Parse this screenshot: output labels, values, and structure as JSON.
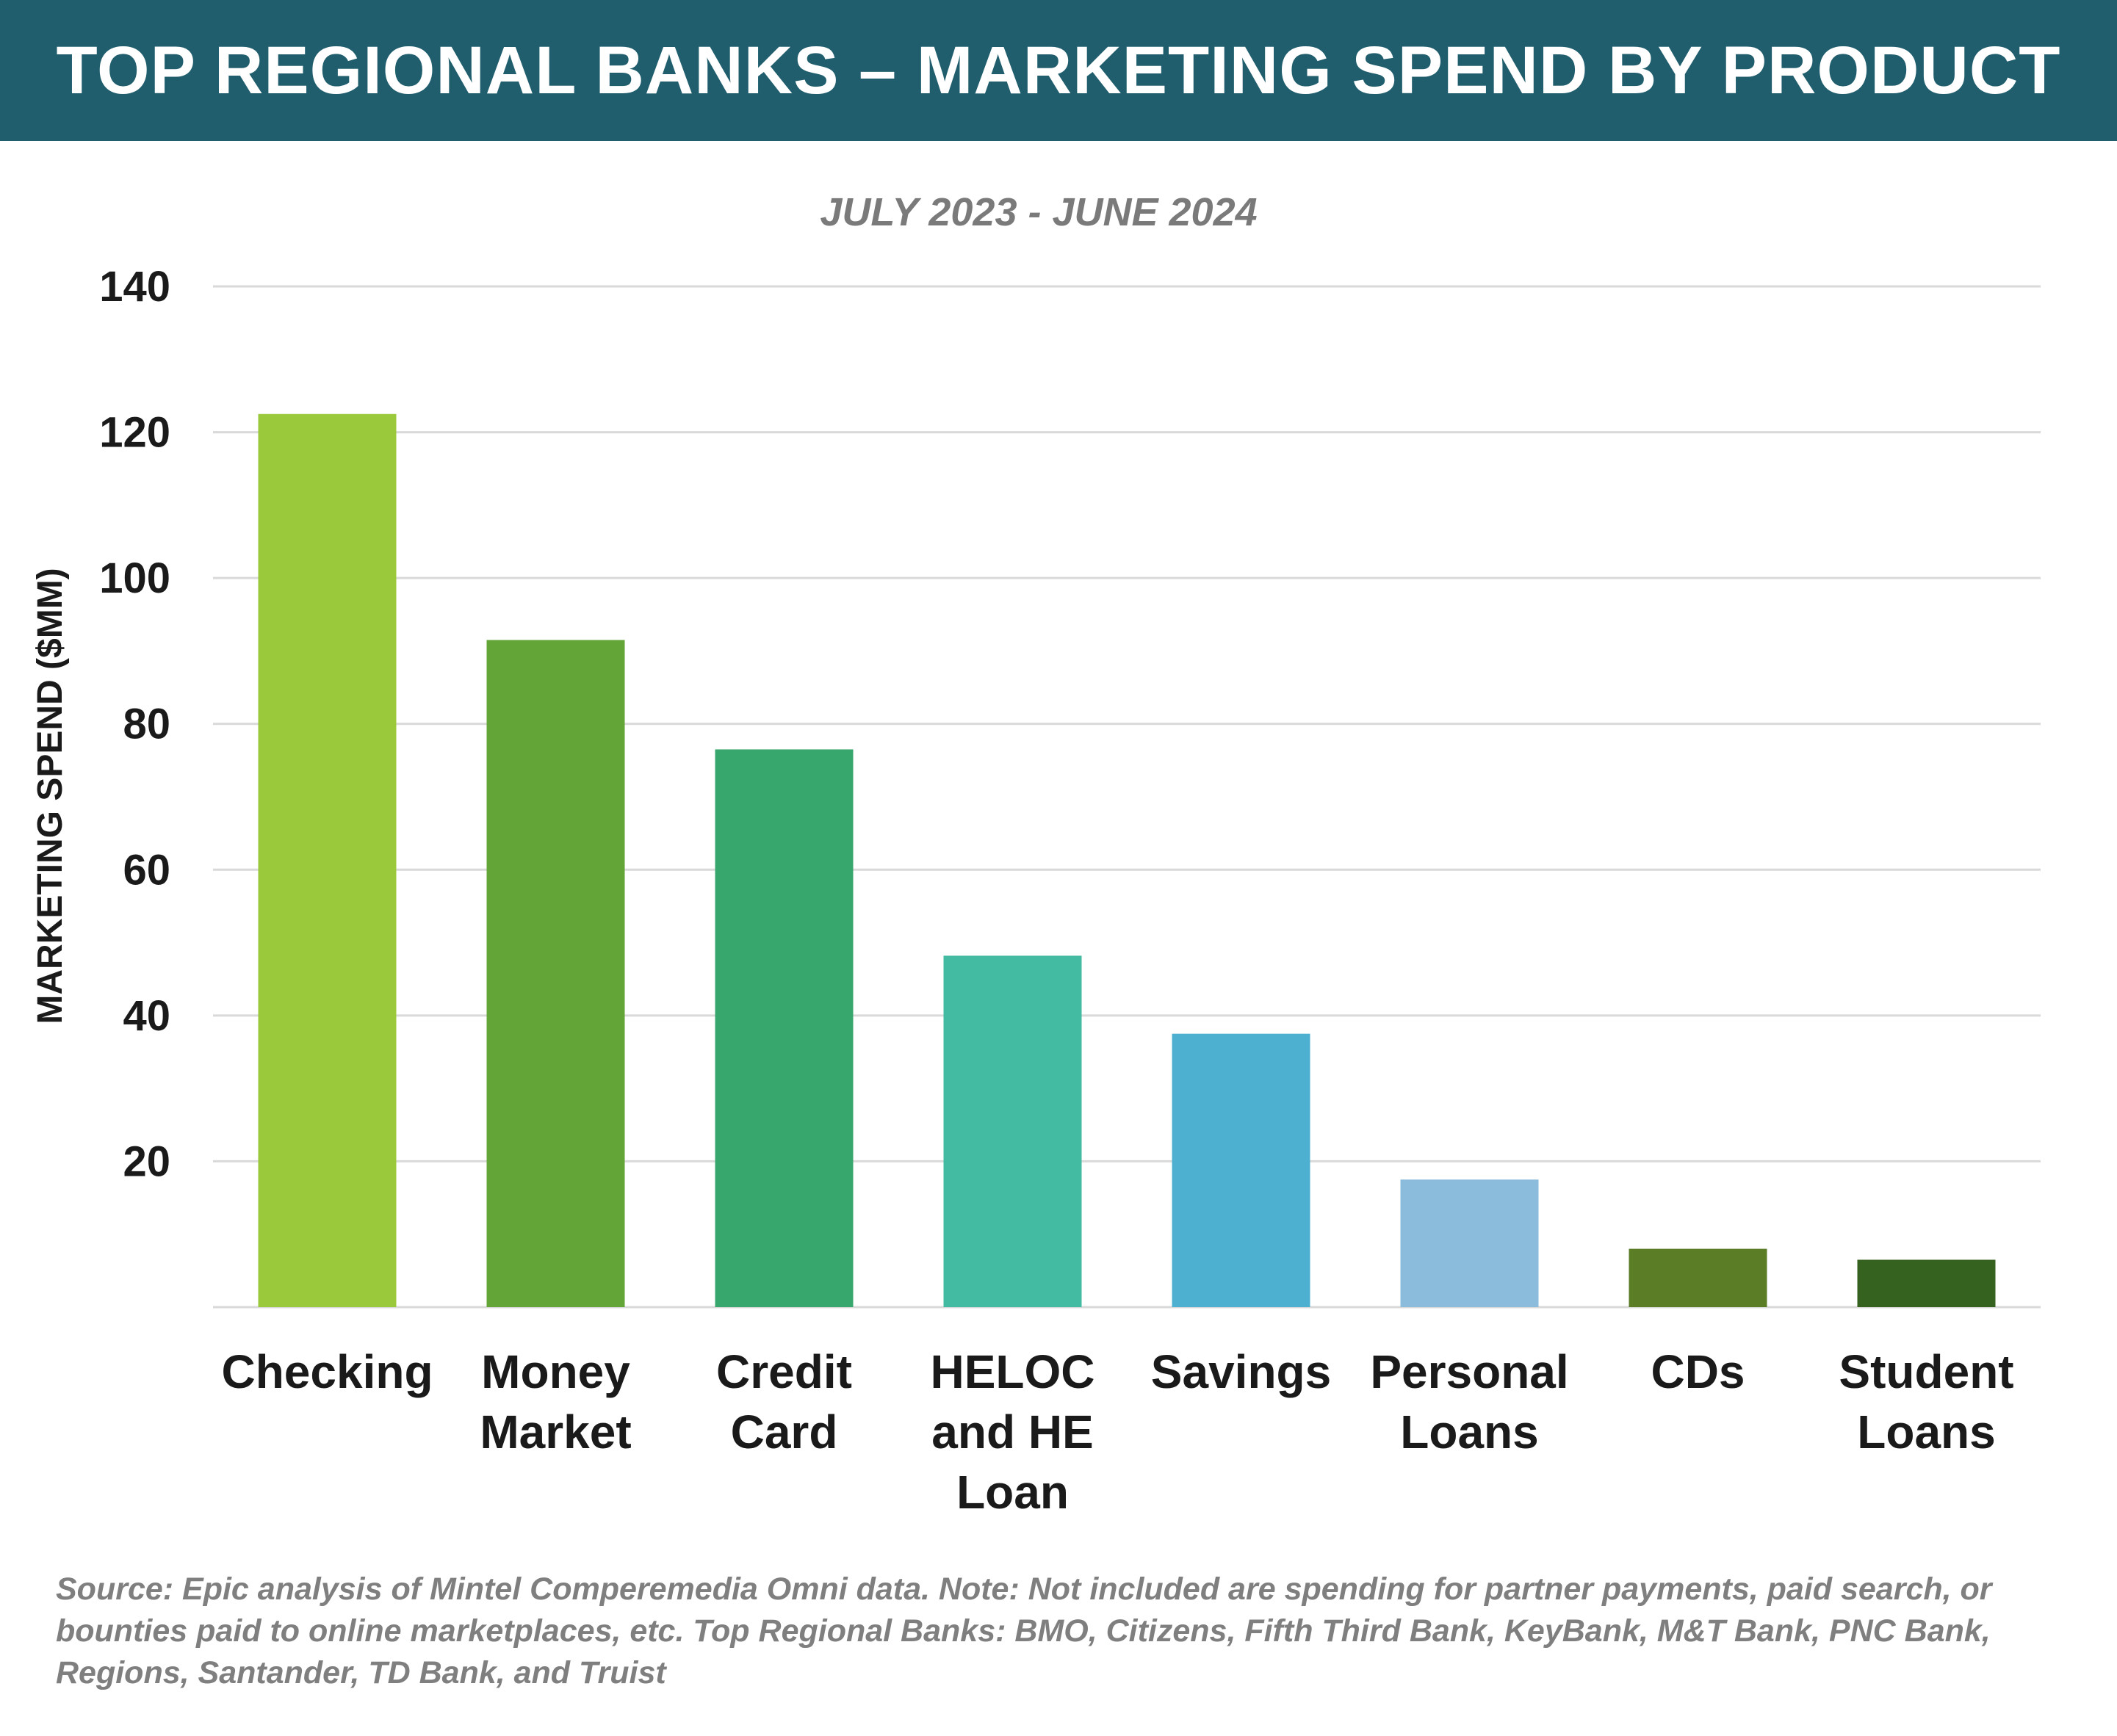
{
  "colors": {
    "header_bg": "#205e6e",
    "title_text": "#ffffff",
    "subtitle_text": "#7a7a7a",
    "axis_text": "#1a1a1a",
    "grid": "#d9d9d9",
    "source_text": "#7f7f7f"
  },
  "header": {
    "title": "TOP REGIONAL BANKS – MARKETING SPEND BY PRODUCT"
  },
  "chart_data": {
    "type": "bar",
    "title": "TOP REGIONAL BANKS – MARKETING SPEND BY PRODUCT",
    "subtitle": "JULY 2023 - JUNE 2024",
    "xlabel": "",
    "ylabel": "MARKETING SPEND ($MM)",
    "ylim": [
      0,
      140
    ],
    "yticks": [
      20,
      40,
      60,
      80,
      100,
      120,
      140
    ],
    "grid": true,
    "legend": "none",
    "categories": [
      [
        "Checking"
      ],
      [
        "Money",
        "Market"
      ],
      [
        "Credit",
        "Card"
      ],
      [
        "HELOC",
        "and HE",
        "Loan"
      ],
      [
        "Savings"
      ],
      [
        "Personal",
        "Loans"
      ],
      [
        "CDs"
      ],
      [
        "Student",
        "Loans"
      ]
    ],
    "values": [
      122.5,
      91.5,
      76.5,
      48.2,
      37.5,
      17.5,
      8.0,
      6.5
    ],
    "bar_colors": [
      "#9aca3c",
      "#63a537",
      "#38a76e",
      "#42bba2",
      "#4db0d0",
      "#8bbcdc",
      "#5a7d26",
      "#36621f"
    ]
  },
  "source_note": "Source: Epic analysis of Mintel Comperemedia Omni data. Note: Not included are spending for partner payments, paid search, or bounties paid to online marketplaces, etc. Top Regional Banks: BMO, Citizens, Fifth Third Bank, KeyBank, M&T Bank, PNC Bank, Regions, Santander, TD Bank, and Truist"
}
